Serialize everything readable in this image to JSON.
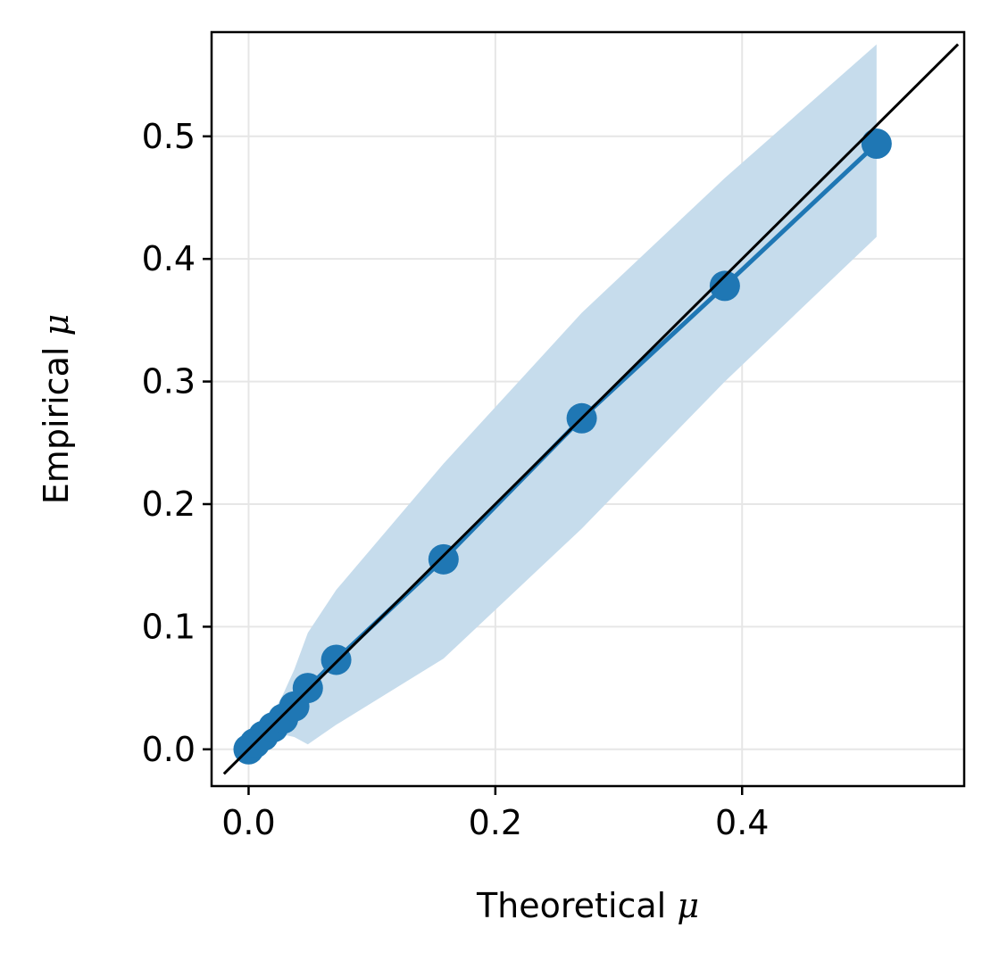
{
  "chart_data": {
    "type": "scatter",
    "xlabel": "Theoretical",
    "ylabel": "Empirical",
    "symbol": "μ",
    "xlim": [
      -0.03,
      0.58
    ],
    "ylim": [
      -0.03,
      0.585
    ],
    "xticks": [
      0.0,
      0.2,
      0.4
    ],
    "xtick_labels": [
      "0.0",
      "0.2",
      "0.4"
    ],
    "yticks": [
      0.0,
      0.1,
      0.2,
      0.3,
      0.4,
      0.5
    ],
    "ytick_labels": [
      "0.0",
      "0.1",
      "0.2",
      "0.3",
      "0.4",
      "0.5"
    ],
    "grid": true,
    "series": [
      {
        "x": [
          0.0,
          0.005,
          0.012,
          0.02,
          0.028,
          0.037,
          0.048,
          0.071,
          0.158,
          0.27,
          0.386,
          0.509
        ],
        "y": [
          0.0,
          0.005,
          0.011,
          0.018,
          0.025,
          0.035,
          0.05,
          0.073,
          0.155,
          0.27,
          0.378,
          0.494
        ],
        "band_x": [
          0.0,
          0.005,
          0.012,
          0.02,
          0.028,
          0.037,
          0.048,
          0.071,
          0.158,
          0.27,
          0.386,
          0.509
        ],
        "band_lower": [
          -0.003,
          0.0,
          0.004,
          0.008,
          0.012,
          0.01,
          0.004,
          0.02,
          0.074,
          0.18,
          0.3,
          0.418
        ],
        "band_upper": [
          0.003,
          0.012,
          0.02,
          0.03,
          0.045,
          0.065,
          0.095,
          0.13,
          0.233,
          0.356,
          0.466,
          0.575
        ],
        "color": "#1f77b4",
        "band_color": "#c6dcec"
      }
    ],
    "reference_line": {
      "x": [
        -0.02,
        0.575
      ],
      "y": [
        -0.02,
        0.575
      ],
      "color": "#000000"
    }
  }
}
